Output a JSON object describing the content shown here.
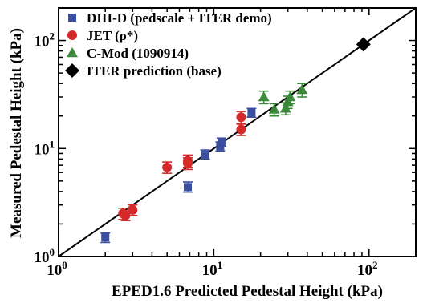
{
  "chart_data": {
    "type": "scatter",
    "xlabel": "EPED1.6 Predicted Pedestal Height (kPa)",
    "ylabel": "Measured Pedestal Height (kPa)",
    "x_scale": "log",
    "y_scale": "log",
    "xlim": [
      1,
      200
    ],
    "ylim": [
      1,
      200
    ],
    "x_ticks": [
      {
        "value": 1,
        "base": "10",
        "exp": "0"
      },
      {
        "value": 10,
        "base": "10",
        "exp": "1"
      },
      {
        "value": 100,
        "base": "10",
        "exp": "2"
      }
    ],
    "y_ticks": [
      {
        "value": 1,
        "base": "10",
        "exp": "0"
      },
      {
        "value": 10,
        "base": "10",
        "exp": "1"
      },
      {
        "value": 100,
        "base": "10",
        "exp": "2"
      }
    ],
    "legend_position": "top-left",
    "reference_line": {
      "type": "y=x"
    },
    "series": [
      {
        "name": "DIII-D (pedscale + ITER demo)",
        "marker": "square",
        "color": "#3a4fa0",
        "points": [
          {
            "x": 2.0,
            "y": 1.5,
            "yerr": [
              0.15,
              0.15
            ]
          },
          {
            "x": 6.8,
            "y": 4.4,
            "yerr": [
              0.45,
              0.5
            ]
          },
          {
            "x": 8.8,
            "y": 8.8,
            "yerr": [
              0.8,
              0.9
            ]
          },
          {
            "x": 11.0,
            "y": 10.5,
            "yerr": [
              1.0,
              1.0
            ]
          },
          {
            "x": 11.2,
            "y": 11.5,
            "yerr": [
              1.0,
              1.0
            ]
          },
          {
            "x": 17.5,
            "y": 21.5,
            "yerr": [
              2.0,
              2.0
            ]
          }
        ]
      },
      {
        "name": "JET (ρ*)",
        "marker": "circle",
        "color": "#d42a2a",
        "points": [
          {
            "x": 2.6,
            "y": 2.5,
            "yerr": [
              0.3,
              0.3
            ]
          },
          {
            "x": 2.7,
            "y": 2.4,
            "yerr": [
              0.25,
              0.25
            ]
          },
          {
            "x": 3.0,
            "y": 2.7,
            "yerr": [
              0.3,
              0.3
            ]
          },
          {
            "x": 5.0,
            "y": 6.7,
            "yerr": [
              0.8,
              0.8
            ]
          },
          {
            "x": 6.8,
            "y": 7.3,
            "yerr": [
              0.9,
              0.9
            ]
          },
          {
            "x": 6.8,
            "y": 7.7,
            "yerr": [
              1.0,
              1.0
            ]
          },
          {
            "x": 15.0,
            "y": 15.0,
            "yerr": [
              1.8,
              1.8
            ]
          },
          {
            "x": 15.0,
            "y": 19.5,
            "yerr": [
              2.5,
              2.5
            ]
          }
        ]
      },
      {
        "name": "C-Mod (1090914)",
        "marker": "triangle",
        "color": "#3a8a3a",
        "points": [
          {
            "x": 21.0,
            "y": 30.0,
            "yerr": [
              4.0,
              4.0
            ]
          },
          {
            "x": 24.5,
            "y": 23.0,
            "yerr": [
              3.0,
              3.0
            ]
          },
          {
            "x": 29.0,
            "y": 23.5,
            "yerr": [
              3.0,
              3.0
            ]
          },
          {
            "x": 30.0,
            "y": 27.0,
            "yerr": [
              3.5,
              3.5
            ]
          },
          {
            "x": 31.0,
            "y": 30.0,
            "yerr": [
              4.0,
              4.0
            ]
          },
          {
            "x": 37.0,
            "y": 35.0,
            "yerr": [
              5.0,
              5.0
            ]
          }
        ]
      },
      {
        "name": "ITER prediction (base)",
        "marker": "diamond",
        "color": "#000000",
        "points": [
          {
            "x": 92.0,
            "y": 92.0
          }
        ]
      }
    ]
  }
}
